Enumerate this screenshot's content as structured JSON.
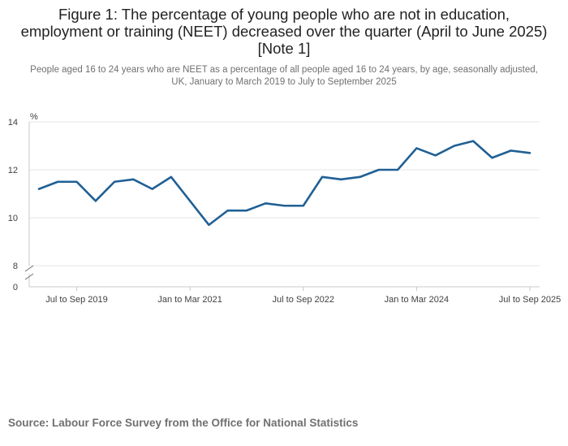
{
  "header": {
    "title": "Figure 1: The percentage of young people who are not in education, employment or training (NEET) decreased over the quarter (April to June 2025) [Note 1]",
    "subtitle": "People aged 16 to 24 years who are NEET as a percentage of all people aged 16 to 24 years, by age, seasonally adjusted, UK, January to March 2019 to July to September 2025"
  },
  "chart_data": {
    "type": "line",
    "ylabel": "%",
    "ylim": [
      8,
      14
    ],
    "y_ticks": [
      "14",
      "12",
      "10",
      "8",
      "0"
    ],
    "x_tick_labels": [
      "Jul to Sep 2019",
      "Jan to Mar 2021",
      "Jul to Sep 2022",
      "Jan to Mar 2024",
      "Jul to Sep 2025"
    ],
    "x_tick_indices": [
      2,
      8,
      14,
      20,
      26
    ],
    "axis_break": true,
    "grid": true,
    "series": [
      {
        "color": "#206095",
        "values": [
          11.2,
          11.5,
          11.5,
          10.7,
          11.5,
          11.6,
          11.2,
          11.7,
          10.7,
          9.7,
          10.3,
          10.3,
          10.6,
          10.5,
          10.5,
          11.7,
          11.6,
          11.7,
          12.0,
          12.0,
          12.9,
          12.6,
          13.0,
          13.2,
          12.5,
          12.8,
          12.7
        ]
      }
    ]
  },
  "footer": {
    "source": "Source: Labour Force Survey from the Office for National Statistics"
  }
}
